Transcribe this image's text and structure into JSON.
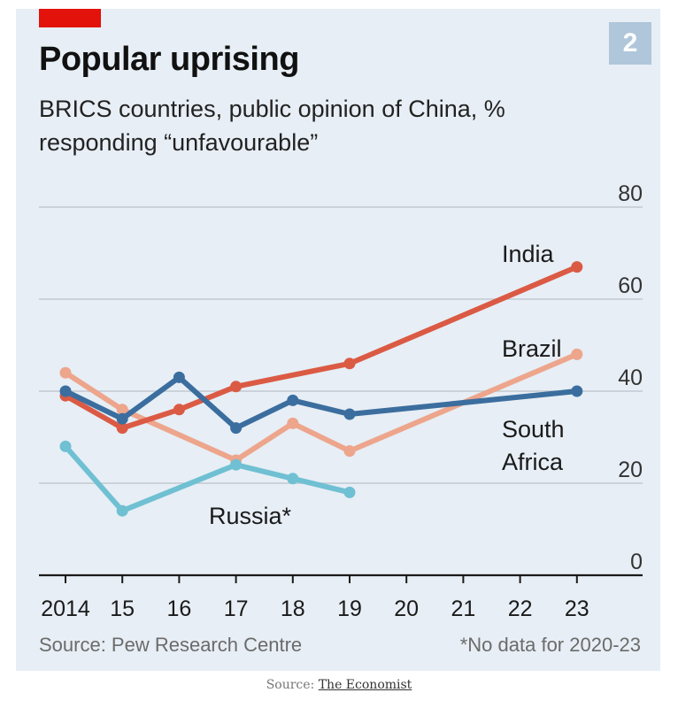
{
  "figure": {
    "badge": "2",
    "source": "Source: Pew Research Centre",
    "footnote": "*No data for 2020-23"
  },
  "credit": {
    "prefix": "Source:",
    "link": "The Economist"
  },
  "colors": {
    "background": "#e7eef5",
    "accent": "#e3120b",
    "grid": "#c2c9d0",
    "axis": "#1a1a1a"
  },
  "chart_data": {
    "type": "line",
    "title": "Popular uprising",
    "subtitle": "BRICS countries, public opinion of China, % responding “unfavourable”",
    "xlabel": "",
    "ylabel": "",
    "x": [
      2014,
      2015,
      2016,
      2017,
      2018,
      2019,
      2020,
      2021,
      2022,
      2023
    ],
    "x_tick_labels": [
      "2014",
      "15",
      "16",
      "17",
      "18",
      "19",
      "20",
      "21",
      "22",
      "23"
    ],
    "ylim": [
      0,
      80
    ],
    "y_ticks": [
      0,
      20,
      40,
      60,
      80
    ],
    "grid": true,
    "series": [
      {
        "name": "Brazil",
        "color": "#eda58c",
        "x": [
          2014,
          2015,
          2017,
          2018,
          2019,
          2023
        ],
        "values": [
          44,
          36,
          25,
          33,
          27,
          48
        ]
      },
      {
        "name": "Russia*",
        "color": "#6fc0d2",
        "x": [
          2014,
          2015,
          2017,
          2018,
          2019
        ],
        "values": [
          28,
          14,
          24,
          21,
          18
        ]
      },
      {
        "name": "India",
        "color": "#db5a44",
        "x": [
          2014,
          2015,
          2016,
          2017,
          2019,
          2023
        ],
        "values": [
          39,
          32,
          36,
          41,
          46,
          67
        ]
      },
      {
        "name": "South Africa",
        "color": "#3b6e9e",
        "x": [
          2014,
          2015,
          2016,
          2017,
          2018,
          2019,
          2023
        ],
        "values": [
          40,
          34,
          43,
          32,
          38,
          35,
          40
        ]
      }
    ]
  }
}
